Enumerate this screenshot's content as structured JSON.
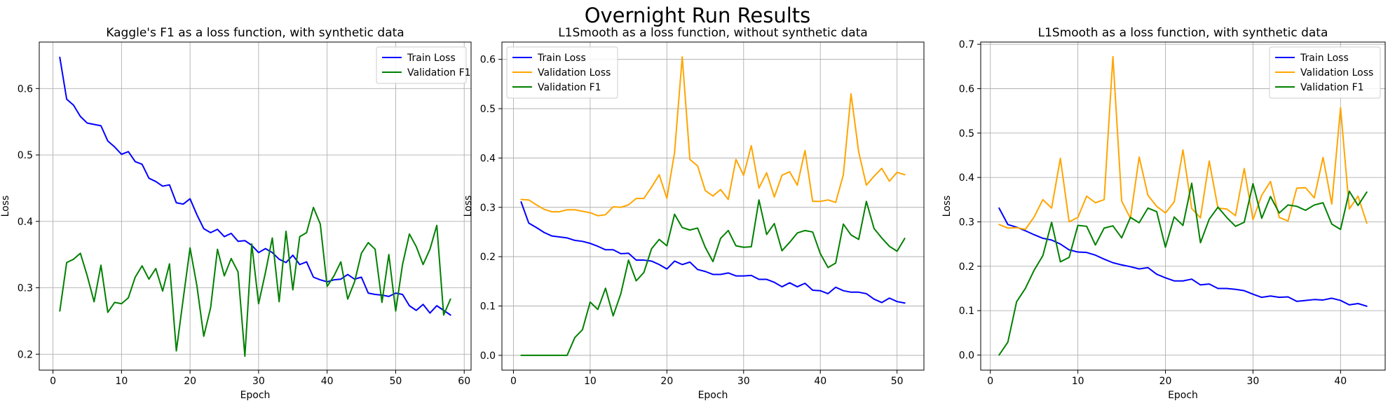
{
  "figure_title": "Overnight Run Results",
  "chart_data": [
    {
      "type": "line",
      "title": "Kaggle's F1 as a loss function, with synthetic data",
      "xlabel": "Epoch",
      "ylabel": "Loss",
      "xlim": [
        -2,
        61
      ],
      "ylim": [
        0.176,
        0.67
      ],
      "xticks": [
        0,
        10,
        20,
        30,
        40,
        50,
        60
      ],
      "yticks": [
        0.2,
        0.3,
        0.4,
        0.5,
        0.6
      ],
      "grid": true,
      "legend": "top-right",
      "series": [
        {
          "name": "Train Loss",
          "color": "#0000ff",
          "x": [
            1,
            2,
            3,
            4,
            5,
            6,
            7,
            8,
            9,
            10,
            11,
            12,
            13,
            14,
            15,
            16,
            17,
            18,
            19,
            20,
            21,
            22,
            23,
            24,
            25,
            26,
            27,
            28,
            29,
            30,
            31,
            32,
            33,
            34,
            35,
            36,
            37,
            38,
            39,
            40,
            41,
            42,
            43,
            44,
            45,
            46,
            47,
            48,
            49,
            50,
            51,
            52,
            53,
            54,
            55,
            56,
            57,
            58
          ],
          "y": [
            0.647,
            0.584,
            0.575,
            0.558,
            0.548,
            0.546,
            0.544,
            0.521,
            0.512,
            0.501,
            0.505,
            0.49,
            0.486,
            0.465,
            0.46,
            0.453,
            0.455,
            0.428,
            0.426,
            0.434,
            0.41,
            0.389,
            0.383,
            0.388,
            0.377,
            0.382,
            0.37,
            0.371,
            0.364,
            0.353,
            0.359,
            0.353,
            0.343,
            0.338,
            0.349,
            0.335,
            0.339,
            0.316,
            0.312,
            0.309,
            0.312,
            0.313,
            0.32,
            0.313,
            0.316,
            0.292,
            0.29,
            0.289,
            0.287,
            0.292,
            0.29,
            0.273,
            0.266,
            0.275,
            0.262,
            0.273,
            0.266,
            0.259
          ]
        },
        {
          "name": "Validation F1",
          "color": "#008000",
          "x": [
            1,
            2,
            3,
            4,
            5,
            6,
            7,
            8,
            9,
            10,
            11,
            12,
            13,
            14,
            15,
            16,
            17,
            18,
            19,
            20,
            21,
            22,
            23,
            24,
            25,
            26,
            27,
            28,
            29,
            30,
            31,
            32,
            33,
            34,
            35,
            36,
            37,
            38,
            39,
            40,
            41,
            42,
            43,
            44,
            45,
            46,
            47,
            48,
            49,
            50,
            51,
            52,
            53,
            54,
            55,
            56,
            57,
            58
          ],
          "y": [
            0.265,
            0.338,
            0.343,
            0.352,
            0.318,
            0.279,
            0.334,
            0.263,
            0.278,
            0.276,
            0.285,
            0.316,
            0.333,
            0.313,
            0.329,
            0.295,
            0.336,
            0.205,
            0.283,
            0.36,
            0.303,
            0.227,
            0.27,
            0.358,
            0.318,
            0.344,
            0.324,
            0.197,
            0.366,
            0.276,
            0.323,
            0.375,
            0.279,
            0.385,
            0.297,
            0.377,
            0.383,
            0.421,
            0.396,
            0.302,
            0.318,
            0.339,
            0.283,
            0.309,
            0.352,
            0.368,
            0.358,
            0.278,
            0.35,
            0.265,
            0.335,
            0.381,
            0.362,
            0.335,
            0.358,
            0.394,
            0.259,
            0.283
          ]
        }
      ]
    },
    {
      "type": "line",
      "title": "L1Smooth as a loss function, without synthetic data",
      "xlabel": "Epoch",
      "ylabel": "Loss",
      "xlim": [
        -1.5,
        53.5
      ],
      "ylim": [
        -0.03,
        0.635
      ],
      "xticks": [
        0,
        10,
        20,
        30,
        40,
        50
      ],
      "yticks": [
        0.0,
        0.1,
        0.2,
        0.3,
        0.4,
        0.5,
        0.6
      ],
      "grid": true,
      "legend": "top-left",
      "series": [
        {
          "name": "Train Loss",
          "color": "#0000ff",
          "x": [
            1,
            2,
            3,
            4,
            5,
            6,
            7,
            8,
            9,
            10,
            11,
            12,
            13,
            14,
            15,
            16,
            17,
            18,
            19,
            20,
            21,
            22,
            23,
            24,
            25,
            26,
            27,
            28,
            29,
            30,
            31,
            32,
            33,
            34,
            35,
            36,
            37,
            38,
            39,
            40,
            41,
            42,
            43,
            44,
            45,
            46,
            47,
            48,
            49,
            50,
            51
          ],
          "y": [
            0.311,
            0.268,
            0.259,
            0.249,
            0.242,
            0.24,
            0.238,
            0.233,
            0.231,
            0.227,
            0.221,
            0.214,
            0.214,
            0.206,
            0.207,
            0.193,
            0.193,
            0.191,
            0.184,
            0.175,
            0.191,
            0.184,
            0.189,
            0.174,
            0.17,
            0.164,
            0.164,
            0.167,
            0.161,
            0.161,
            0.162,
            0.154,
            0.154,
            0.148,
            0.139,
            0.147,
            0.139,
            0.146,
            0.132,
            0.131,
            0.125,
            0.138,
            0.131,
            0.128,
            0.128,
            0.125,
            0.114,
            0.107,
            0.116,
            0.109,
            0.106
          ]
        },
        {
          "name": "Validation Loss",
          "color": "#ffa500",
          "x": [
            1,
            2,
            3,
            4,
            5,
            6,
            7,
            8,
            9,
            10,
            11,
            12,
            13,
            14,
            15,
            16,
            17,
            18,
            19,
            20,
            21,
            22,
            23,
            24,
            25,
            26,
            27,
            28,
            29,
            30,
            31,
            32,
            33,
            34,
            35,
            36,
            37,
            38,
            39,
            40,
            41,
            42,
            43,
            44,
            45,
            46,
            47,
            48,
            49,
            50,
            51
          ],
          "y": [
            0.316,
            0.315,
            0.305,
            0.296,
            0.291,
            0.291,
            0.295,
            0.295,
            0.292,
            0.289,
            0.283,
            0.285,
            0.301,
            0.3,
            0.305,
            0.318,
            0.318,
            0.341,
            0.366,
            0.318,
            0.411,
            0.605,
            0.397,
            0.384,
            0.334,
            0.323,
            0.336,
            0.316,
            0.397,
            0.365,
            0.425,
            0.339,
            0.37,
            0.321,
            0.365,
            0.372,
            0.345,
            0.415,
            0.312,
            0.312,
            0.315,
            0.31,
            0.366,
            0.53,
            0.412,
            0.345,
            0.363,
            0.379,
            0.353,
            0.371,
            0.366
          ]
        },
        {
          "name": "Validation F1",
          "color": "#008000",
          "x": [
            1,
            2,
            3,
            4,
            5,
            6,
            7,
            8,
            9,
            10,
            11,
            12,
            13,
            14,
            15,
            16,
            17,
            18,
            19,
            20,
            21,
            22,
            23,
            24,
            25,
            26,
            27,
            28,
            29,
            30,
            31,
            32,
            33,
            34,
            35,
            36,
            37,
            38,
            39,
            40,
            41,
            42,
            43,
            44,
            45,
            46,
            47,
            48,
            49,
            50,
            51
          ],
          "y": [
            0.0,
            0.0,
            0.0,
            0.0,
            0.0,
            0.0,
            0.0,
            0.036,
            0.052,
            0.108,
            0.093,
            0.136,
            0.08,
            0.125,
            0.193,
            0.151,
            0.168,
            0.216,
            0.235,
            0.222,
            0.286,
            0.259,
            0.254,
            0.258,
            0.219,
            0.19,
            0.237,
            0.253,
            0.222,
            0.219,
            0.22,
            0.315,
            0.245,
            0.267,
            0.212,
            0.229,
            0.248,
            0.253,
            0.25,
            0.206,
            0.178,
            0.187,
            0.266,
            0.244,
            0.235,
            0.312,
            0.257,
            0.238,
            0.221,
            0.211,
            0.237
          ]
        }
      ]
    },
    {
      "type": "line",
      "title": "L1Smooth as a loss function, with synthetic data",
      "xlabel": "Epoch",
      "ylabel": "Loss",
      "xlim": [
        -1.1,
        45.1
      ],
      "ylim": [
        -0.034,
        0.705
      ],
      "xticks": [
        0,
        10,
        20,
        30,
        40
      ],
      "yticks": [
        0.0,
        0.1,
        0.2,
        0.3,
        0.4,
        0.5,
        0.6,
        0.7
      ],
      "grid": true,
      "legend": "top-right",
      "series": [
        {
          "name": "Train Loss",
          "color": "#0000ff",
          "x": [
            1,
            2,
            3,
            4,
            5,
            6,
            7,
            8,
            9,
            10,
            11,
            12,
            13,
            14,
            15,
            16,
            17,
            18,
            19,
            20,
            21,
            22,
            23,
            24,
            25,
            26,
            27,
            28,
            29,
            30,
            31,
            32,
            33,
            34,
            35,
            36,
            37,
            38,
            39,
            40,
            41,
            42,
            43
          ],
          "y": [
            0.331,
            0.294,
            0.288,
            0.28,
            0.271,
            0.263,
            0.259,
            0.25,
            0.237,
            0.232,
            0.231,
            0.225,
            0.216,
            0.208,
            0.203,
            0.199,
            0.194,
            0.197,
            0.182,
            0.174,
            0.167,
            0.167,
            0.171,
            0.158,
            0.16,
            0.15,
            0.15,
            0.148,
            0.145,
            0.137,
            0.13,
            0.133,
            0.13,
            0.131,
            0.121,
            0.123,
            0.125,
            0.124,
            0.128,
            0.123,
            0.113,
            0.116,
            0.11
          ]
        },
        {
          "name": "Validation Loss",
          "color": "#ffa500",
          "x": [
            1,
            2,
            3,
            4,
            5,
            6,
            7,
            8,
            9,
            10,
            11,
            12,
            13,
            14,
            15,
            16,
            17,
            18,
            19,
            20,
            21,
            22,
            23,
            24,
            25,
            26,
            27,
            28,
            29,
            30,
            31,
            32,
            33,
            34,
            35,
            36,
            37,
            38,
            39,
            40,
            41,
            42,
            43
          ],
          "y": [
            0.294,
            0.286,
            0.287,
            0.283,
            0.311,
            0.35,
            0.331,
            0.443,
            0.3,
            0.31,
            0.358,
            0.343,
            0.35,
            0.672,
            0.347,
            0.308,
            0.446,
            0.36,
            0.335,
            0.32,
            0.345,
            0.462,
            0.33,
            0.309,
            0.437,
            0.331,
            0.329,
            0.314,
            0.42,
            0.305,
            0.36,
            0.391,
            0.31,
            0.302,
            0.376,
            0.377,
            0.354,
            0.445,
            0.34,
            0.557,
            0.329,
            0.358,
            0.297
          ]
        },
        {
          "name": "Validation F1",
          "color": "#008000",
          "x": [
            1,
            2,
            3,
            4,
            5,
            6,
            7,
            8,
            9,
            10,
            11,
            12,
            13,
            14,
            15,
            16,
            17,
            18,
            19,
            20,
            21,
            22,
            23,
            24,
            25,
            26,
            27,
            28,
            29,
            30,
            31,
            32,
            33,
            34,
            35,
            36,
            37,
            38,
            39,
            40,
            41,
            42,
            43
          ],
          "y": [
            0.0,
            0.029,
            0.12,
            0.15,
            0.191,
            0.224,
            0.299,
            0.21,
            0.22,
            0.292,
            0.29,
            0.248,
            0.286,
            0.291,
            0.264,
            0.31,
            0.298,
            0.331,
            0.323,
            0.243,
            0.311,
            0.292,
            0.387,
            0.253,
            0.306,
            0.333,
            0.31,
            0.29,
            0.299,
            0.386,
            0.308,
            0.357,
            0.32,
            0.338,
            0.335,
            0.326,
            0.338,
            0.343,
            0.295,
            0.283,
            0.369,
            0.337,
            0.367
          ]
        }
      ]
    }
  ]
}
